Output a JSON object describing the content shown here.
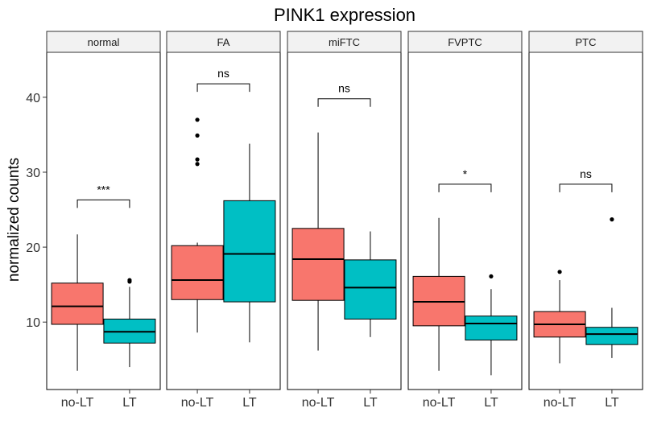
{
  "chart_data": {
    "type": "boxplot",
    "title": "PINK1 expression",
    "xlabel": "",
    "ylabel": "normalized counts",
    "ylim": [
      1,
      46
    ],
    "yticks": [
      10,
      20,
      30,
      40
    ],
    "categories": [
      "no-LT",
      "LT"
    ],
    "colors": {
      "no-LT": "#F8766D",
      "LT": "#00BFC4"
    },
    "grid": false,
    "legend": "none",
    "facets": [
      {
        "label": "normal",
        "significance": "***",
        "bracket_y": 26.3,
        "boxes": [
          {
            "group": "no-LT",
            "min": 3.5,
            "q1": 9.7,
            "median": 12.1,
            "q3": 15.2,
            "max": 21.7,
            "outliers": []
          },
          {
            "group": "LT",
            "min": 4.0,
            "q1": 7.2,
            "median": 8.7,
            "q3": 10.4,
            "max": 14.7,
            "outliers": [
              15.4,
              15.6
            ]
          }
        ]
      },
      {
        "label": "FA",
        "significance": "ns",
        "bracket_y": 41.8,
        "boxes": [
          {
            "group": "no-LT",
            "min": 8.6,
            "q1": 13.0,
            "median": 15.6,
            "q3": 20.2,
            "max": 20.6,
            "outliers": [
              31.1,
              31.7,
              34.9,
              37.0
            ]
          },
          {
            "group": "LT",
            "min": 7.3,
            "q1": 12.7,
            "median": 19.1,
            "q3": 26.2,
            "max": 33.8,
            "outliers": []
          }
        ]
      },
      {
        "label": "miFTC",
        "significance": "ns",
        "bracket_y": 39.8,
        "boxes": [
          {
            "group": "no-LT",
            "min": 6.2,
            "q1": 12.9,
            "median": 18.4,
            "q3": 22.5,
            "max": 35.3,
            "outliers": []
          },
          {
            "group": "LT",
            "min": 8.0,
            "q1": 10.4,
            "median": 14.6,
            "q3": 18.3,
            "max": 22.1,
            "outliers": []
          }
        ]
      },
      {
        "label": "FVPTC",
        "significance": "*",
        "bracket_y": 28.4,
        "boxes": [
          {
            "group": "no-LT",
            "min": 3.5,
            "q1": 9.5,
            "median": 12.7,
            "q3": 16.1,
            "max": 23.9,
            "outliers": []
          },
          {
            "group": "LT",
            "min": 2.9,
            "q1": 7.6,
            "median": 9.8,
            "q3": 10.8,
            "max": 14.4,
            "outliers": [
              16.1
            ]
          }
        ]
      },
      {
        "label": "PTC",
        "significance": "ns",
        "bracket_y": 28.4,
        "boxes": [
          {
            "group": "no-LT",
            "min": 4.5,
            "q1": 8.0,
            "median": 9.7,
            "q3": 11.4,
            "max": 15.6,
            "outliers": [
              16.7
            ]
          },
          {
            "group": "LT",
            "min": 5.2,
            "q1": 7.0,
            "median": 8.4,
            "q3": 9.3,
            "max": 11.9,
            "outliers": [
              23.7
            ]
          }
        ]
      }
    ]
  }
}
